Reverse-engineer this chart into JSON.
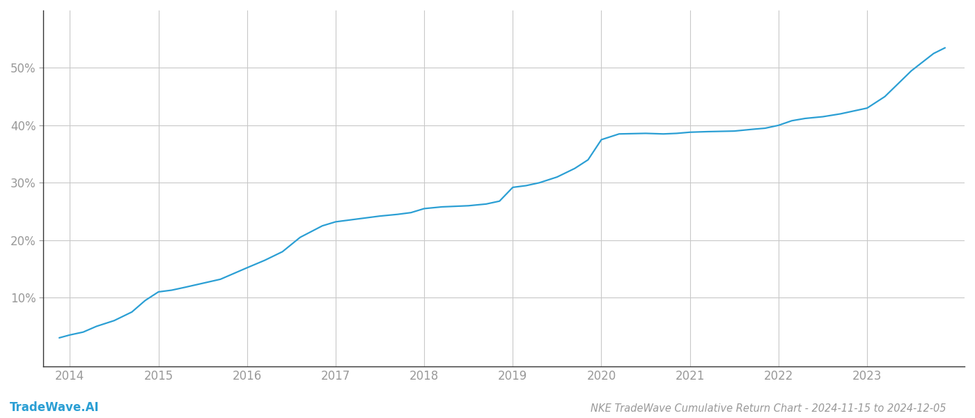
{
  "title": "NKE TradeWave Cumulative Return Chart - 2024-11-15 to 2024-12-05",
  "watermark": "TradeWave.AI",
  "line_color": "#2b9fd4",
  "background_color": "#ffffff",
  "grid_color": "#c8c8c8",
  "x_values": [
    2013.88,
    2014.0,
    2014.15,
    2014.3,
    2014.5,
    2014.7,
    2014.85,
    2015.0,
    2015.15,
    2015.3,
    2015.5,
    2015.7,
    2015.85,
    2016.0,
    2016.2,
    2016.4,
    2016.6,
    2016.85,
    2017.0,
    2017.15,
    2017.3,
    2017.5,
    2017.7,
    2017.85,
    2018.0,
    2018.2,
    2018.5,
    2018.7,
    2018.85,
    2019.0,
    2019.15,
    2019.3,
    2019.5,
    2019.7,
    2019.85,
    2020.0,
    2020.1,
    2020.2,
    2020.5,
    2020.7,
    2020.85,
    2021.0,
    2021.2,
    2021.5,
    2021.7,
    2021.85,
    2022.0,
    2022.15,
    2022.3,
    2022.5,
    2022.7,
    2022.85,
    2023.0,
    2023.2,
    2023.5,
    2023.75,
    2023.88
  ],
  "y_values": [
    3.0,
    3.5,
    4.0,
    5.0,
    6.0,
    7.5,
    9.5,
    11.0,
    11.3,
    11.8,
    12.5,
    13.2,
    14.2,
    15.2,
    16.5,
    18.0,
    20.5,
    22.5,
    23.2,
    23.5,
    23.8,
    24.2,
    24.5,
    24.8,
    25.5,
    25.8,
    26.0,
    26.3,
    26.8,
    29.2,
    29.5,
    30.0,
    31.0,
    32.5,
    34.0,
    37.5,
    38.0,
    38.5,
    38.6,
    38.5,
    38.6,
    38.8,
    38.9,
    39.0,
    39.3,
    39.5,
    40.0,
    40.8,
    41.2,
    41.5,
    42.0,
    42.5,
    43.0,
    45.0,
    49.5,
    52.5,
    53.5
  ],
  "yticks": [
    10,
    20,
    30,
    40,
    50
  ],
  "ytick_labels": [
    "10%",
    "20%",
    "30%",
    "40%",
    "50%"
  ],
  "xticks": [
    2014,
    2015,
    2016,
    2017,
    2018,
    2019,
    2020,
    2021,
    2022,
    2023
  ],
  "xlim": [
    2013.7,
    2024.1
  ],
  "ylim": [
    -2,
    60
  ],
  "line_width": 1.6,
  "title_fontsize": 10.5,
  "tick_fontsize": 12,
  "watermark_fontsize": 12,
  "axis_color": "#333333",
  "tick_color": "#999999",
  "spine_left_color": "#333333"
}
